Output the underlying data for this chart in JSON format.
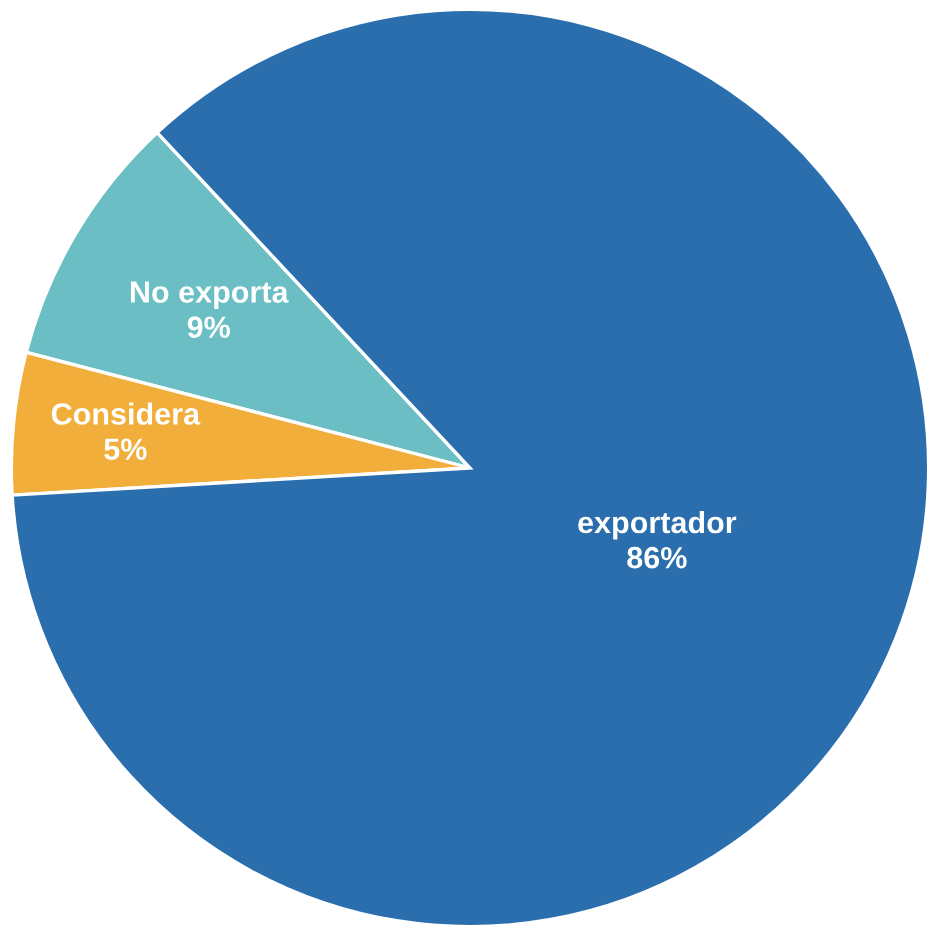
{
  "chart_data": {
    "type": "pie",
    "categories": [
      "No exporta",
      "Considera",
      "exportador"
    ],
    "values": [
      9,
      5,
      86
    ],
    "value_labels": [
      "9%",
      "5%",
      "86%"
    ],
    "colors": [
      "#6bbfc4",
      "#f2ae3a",
      "#2a6ead"
    ]
  }
}
